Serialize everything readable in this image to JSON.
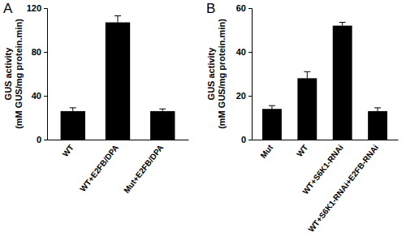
{
  "chart_data": [
    {
      "type": "bar",
      "title": "A",
      "ylabel": "GUS activity\n(mM GUS/mg protein.min)",
      "categories": [
        "WT",
        "WT+E2FB/DPA",
        "Mut+E2FB/DPA"
      ],
      "values": [
        26,
        107,
        26
      ],
      "errors": [
        3,
        6,
        2
      ],
      "color": "#000000",
      "ylim": [
        0,
        120
      ],
      "yticks": [
        0,
        40,
        80,
        120
      ],
      "grid": false
    },
    {
      "type": "bar",
      "title": "B",
      "ylabel": "GUS activity\n(mM GUS/mg protein.min)",
      "categories": [
        "Mut",
        "WT",
        "WT+S6K1-RNAi",
        "WT+S6K1-RNAi+E2FB-RNAi"
      ],
      "values": [
        14,
        28,
        52,
        13
      ],
      "errors": [
        1.5,
        3,
        1.5,
        1.5
      ],
      "color": "#000000",
      "ylim": [
        0,
        60
      ],
      "yticks": [
        0,
        20,
        40,
        60
      ],
      "grid": false
    }
  ]
}
